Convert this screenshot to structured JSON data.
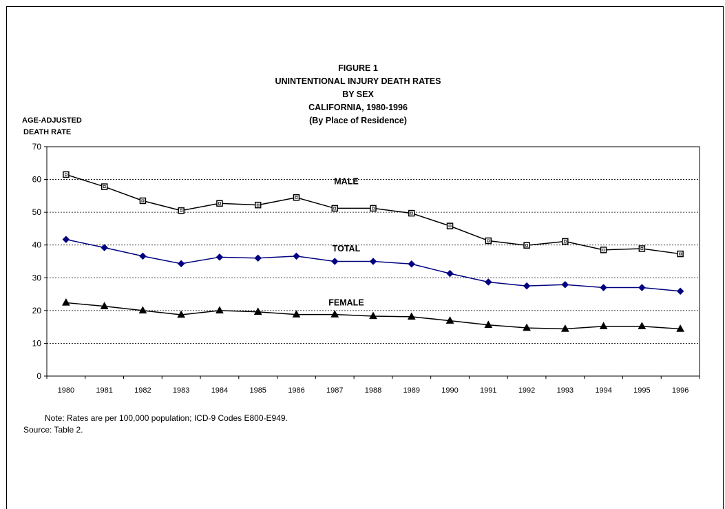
{
  "chart_data": {
    "type": "line",
    "title_lines": [
      "FIGURE 1",
      "UNINTENTIONAL INJURY DEATH RATES",
      "BY SEX",
      "CALIFORNIA, 1980-1996",
      "(By Place of Residence)"
    ],
    "ylabel_lines": [
      "AGE-ADJUSTED",
      "DEATH RATE"
    ],
    "xlabel": "",
    "categories": [
      "1980",
      "1981",
      "1982",
      "1983",
      "1984",
      "1985",
      "1986",
      "1987",
      "1988",
      "1989",
      "1990",
      "1991",
      "1992",
      "1993",
      "1994",
      "1995",
      "1996"
    ],
    "ylim": [
      0,
      70
    ],
    "yticks": [
      0,
      10,
      20,
      30,
      40,
      50,
      60,
      70
    ],
    "grid": "horizontal dashed",
    "series": [
      {
        "name": "MALE",
        "marker": "square-open",
        "color": "#000000",
        "values": [
          61.5,
          57.8,
          53.5,
          50.5,
          52.7,
          52.2,
          54.5,
          51.2,
          51.2,
          49.7,
          45.8,
          41.3,
          39.9,
          41.1,
          38.5,
          38.9,
          37.3
        ]
      },
      {
        "name": "TOTAL",
        "marker": "diamond",
        "color": "#000080",
        "values": [
          41.7,
          39.2,
          36.6,
          34.3,
          36.3,
          36.0,
          36.6,
          35.0,
          35.0,
          34.2,
          31.3,
          28.7,
          27.5,
          27.9,
          27.0,
          27.0,
          25.9
        ]
      },
      {
        "name": "FEMALE",
        "marker": "triangle",
        "color": "#000000",
        "values": [
          22.4,
          21.3,
          20.0,
          18.7,
          20.0,
          19.6,
          18.8,
          18.8,
          18.3,
          18.1,
          16.9,
          15.6,
          14.7,
          14.4,
          15.2,
          15.2,
          14.4
        ]
      }
    ],
    "series_labels": [
      "MALE",
      "TOTAL",
      "FEMALE"
    ]
  },
  "notes": {
    "line1": "Note: Rates are per 100,000 population; ICD-9 Codes E800-E949.",
    "line2": "Source: Table 2."
  }
}
